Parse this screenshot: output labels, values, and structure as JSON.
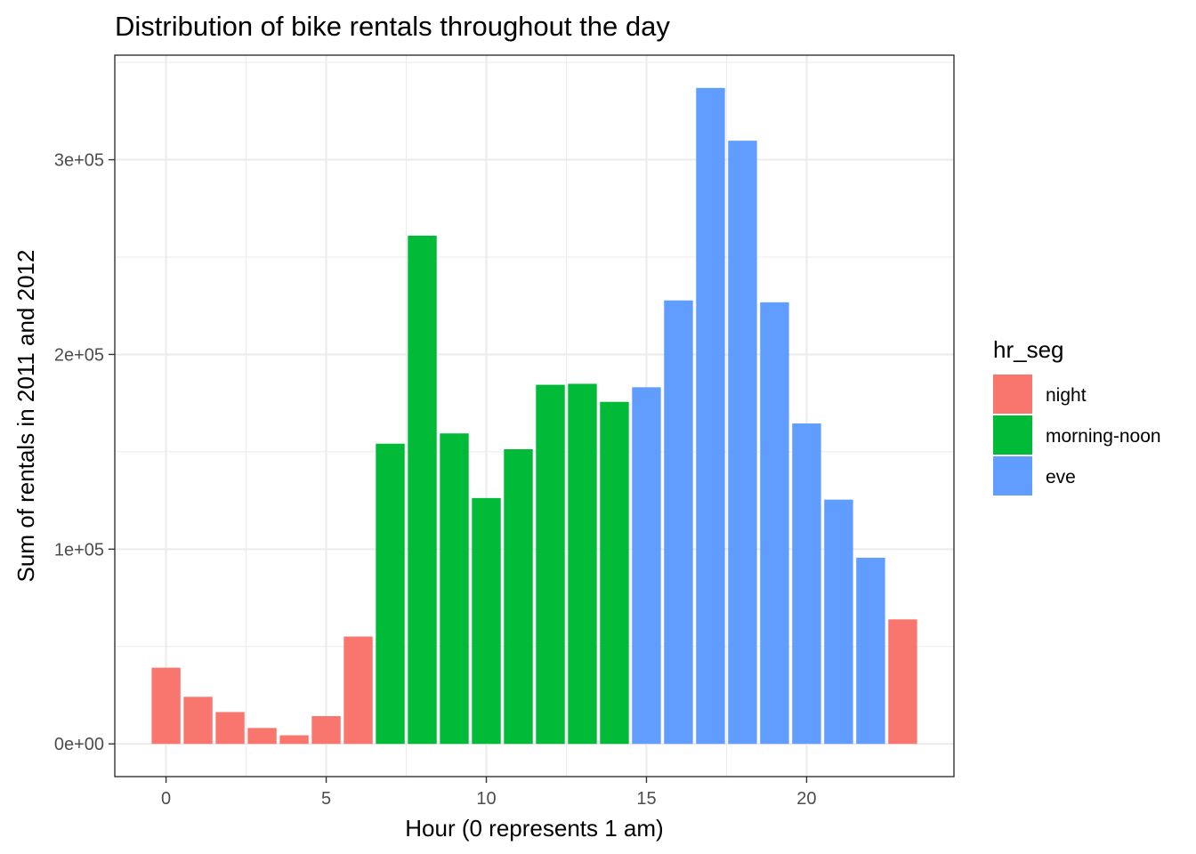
{
  "chart_data": {
    "type": "bar",
    "title": "Distribution of bike rentals throughout the day",
    "xlabel": "Hour (0 represents 1 am)",
    "ylabel": "Sum of rentals in 2011 and 2012",
    "x": [
      0,
      1,
      2,
      3,
      4,
      5,
      6,
      7,
      8,
      9,
      10,
      11,
      12,
      13,
      14,
      15,
      16,
      17,
      18,
      19,
      20,
      21,
      22,
      23
    ],
    "values": [
      39130,
      24164,
      16352,
      8174,
      4428,
      14261,
      55132,
      154171,
      261001,
      159438,
      126257,
      151320,
      184414,
      184919,
      175652,
      183149,
      227748,
      336860,
      309772,
      226789,
      164550,
      125445,
      95612,
      63941
    ],
    "segments": [
      "night",
      "night",
      "night",
      "night",
      "night",
      "night",
      "night",
      "morning-noon",
      "morning-noon",
      "morning-noon",
      "morning-noon",
      "morning-noon",
      "morning-noon",
      "morning-noon",
      "morning-noon",
      "eve",
      "eve",
      "eve",
      "eve",
      "eve",
      "eve",
      "eve",
      "eve",
      "night"
    ],
    "xlim": [
      -1.6,
      24.6
    ],
    "ylim": [
      -16800,
      353700
    ],
    "x_ticks": [
      0,
      5,
      10,
      15,
      20
    ],
    "x_tick_labels": [
      "0",
      "5",
      "10",
      "15",
      "20"
    ],
    "y_ticks": [
      0,
      100000,
      200000,
      300000
    ],
    "y_tick_labels": [
      "0e+00",
      "1e+05",
      "2e+05",
      "3e+05"
    ],
    "grid": true,
    "legend": {
      "title": "hr_seg",
      "position": "right",
      "entries": [
        {
          "name": "night",
          "color": "#F8766D"
        },
        {
          "name": "morning-noon",
          "color": "#00BA38"
        },
        {
          "name": "eve",
          "color": "#619CFF"
        }
      ]
    }
  }
}
